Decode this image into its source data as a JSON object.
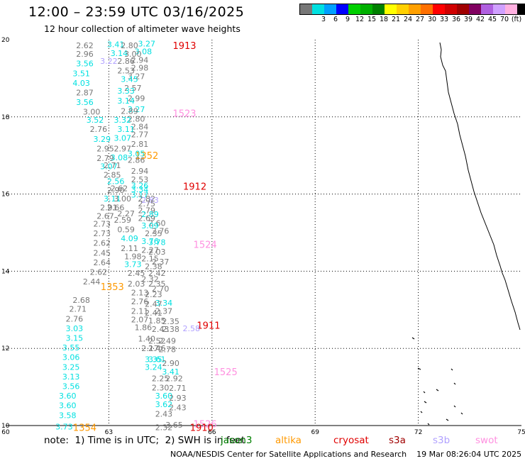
{
  "header": {
    "title": "12:00 – 23:59 UTC 03/16/2025",
    "subtitle": "12 hour collection of altimeter wave heights"
  },
  "legend": {
    "colors": [
      "#777777",
      "#00e0e0",
      "#00a0ff",
      "#0000ff",
      "#00d000",
      "#00b000",
      "#008000",
      "#ffff00",
      "#ffd000",
      "#ffa000",
      "#ff7000",
      "#ff0000",
      "#d00000",
      "#a00000",
      "#800060",
      "#b060e0",
      "#d0a0ff",
      "#ffb0e0",
      "#000000"
    ],
    "labels": [
      {
        "value": "3",
        "index": 1
      },
      {
        "value": "6",
        "index": 2
      },
      {
        "value": "9",
        "index": 3
      },
      {
        "value": "12",
        "index": 4
      },
      {
        "value": "15",
        "index": 5
      },
      {
        "value": "18",
        "index": 6
      },
      {
        "value": "21",
        "index": 7
      },
      {
        "value": "24",
        "index": 8
      },
      {
        "value": "27",
        "index": 9
      },
      {
        "value": "30",
        "index": 10
      },
      {
        "value": "33",
        "index": 11
      },
      {
        "value": "36",
        "index": 12
      },
      {
        "value": "39",
        "index": 13
      },
      {
        "value": "42",
        "index": 14
      },
      {
        "value": "45",
        "index": 15
      },
      {
        "value": "70",
        "index": 16
      },
      {
        "value": "(ft)",
        "index": 17
      }
    ]
  },
  "axes": {
    "x_ticks": [
      "60",
      "63",
      "66",
      "69",
      "72",
      "75"
    ],
    "y_ticks": [
      "20",
      "18",
      "16",
      "14",
      "12",
      "10"
    ],
    "lon_range": [
      60,
      75
    ],
    "lat_range": [
      10,
      20
    ]
  },
  "footer": {
    "note": "note:  1) Time is in UTC;  2) SWH is in feet",
    "credit": "NOAA/NESDIS Center for Satellite Applications and Research    19 Mar 08:26:04 UTC 2025",
    "missions": [
      {
        "name": "jason3",
        "color": "#008000"
      },
      {
        "name": "altika",
        "color": "#ff9900"
      },
      {
        "name": "cryosat",
        "color": "#e00000"
      },
      {
        "name": "s3a",
        "color": "#a00000"
      },
      {
        "name": "s3b",
        "color": "#b0a0ff"
      },
      {
        "name": "swot",
        "color": "#ff90e0"
      }
    ]
  },
  "colors": {
    "gray": "#777777",
    "cyan": "#00e0e0",
    "orange": "#ff9900",
    "red": "#e00000",
    "pink": "#ff90e0",
    "lavender": "#b0a0ff"
  },
  "pass_labels": [
    {
      "text": "1913",
      "lon": 65.2,
      "lat": 19.85,
      "color": "red"
    },
    {
      "text": "1523",
      "lon": 65.2,
      "lat": 18.1,
      "color": "pink"
    },
    {
      "text": "1352",
      "lon": 64.1,
      "lat": 17.0,
      "color": "orange"
    },
    {
      "text": "1912",
      "lon": 65.5,
      "lat": 16.2,
      "color": "red"
    },
    {
      "text": "1524",
      "lon": 65.8,
      "lat": 14.7,
      "color": "pink"
    },
    {
      "text": "1353",
      "lon": 63.1,
      "lat": 13.6,
      "color": "orange"
    },
    {
      "text": "1911",
      "lon": 65.9,
      "lat": 12.6,
      "color": "red"
    },
    {
      "text": "1525",
      "lon": 66.4,
      "lat": 11.4,
      "color": "pink"
    },
    {
      "text": "1354",
      "lon": 62.3,
      "lat": 9.95,
      "color": "orange"
    },
    {
      "text": "1526",
      "lon": 65.8,
      "lat": 10.05,
      "color": "pink"
    },
    {
      "text": "1910",
      "lon": 65.7,
      "lat": 9.95,
      "color": "red"
    }
  ],
  "observations": [
    {
      "v": "2.62",
      "lon": 62.3,
      "lat": 19.85,
      "c": "gray"
    },
    {
      "v": "2.96",
      "lon": 62.3,
      "lat": 19.63,
      "c": "gray"
    },
    {
      "v": "3.56",
      "lon": 62.3,
      "lat": 19.38,
      "c": "cyan"
    },
    {
      "v": "3.51",
      "lon": 62.2,
      "lat": 19.13,
      "c": "cyan"
    },
    {
      "v": "4.03",
      "lon": 62.2,
      "lat": 18.88,
      "c": "cyan"
    },
    {
      "v": "2.87",
      "lon": 62.3,
      "lat": 18.63,
      "c": "gray"
    },
    {
      "v": "3.56",
      "lon": 62.3,
      "lat": 18.38,
      "c": "cyan"
    },
    {
      "v": "3.00",
      "lon": 62.5,
      "lat": 18.13,
      "c": "gray"
    },
    {
      "v": "3.52",
      "lon": 62.6,
      "lat": 17.92,
      "c": "cyan"
    },
    {
      "v": "2.76",
      "lon": 62.7,
      "lat": 17.68,
      "c": "gray"
    },
    {
      "v": "3.29",
      "lon": 62.8,
      "lat": 17.43,
      "c": "cyan"
    },
    {
      "v": "2.95",
      "lon": 62.9,
      "lat": 17.18,
      "c": "gray"
    },
    {
      "v": "2.79",
      "lon": 62.9,
      "lat": 16.93,
      "c": "gray"
    },
    {
      "v": "3.07",
      "lon": 63.0,
      "lat": 16.72,
      "c": "cyan"
    },
    {
      "v": "2.85",
      "lon": 63.1,
      "lat": 16.5,
      "c": "gray"
    },
    {
      "v": "2.56",
      "lon": 63.2,
      "lat": 16.33,
      "c": "cyan"
    },
    {
      "v": "2.90",
      "lon": 63.2,
      "lat": 16.1,
      "c": "gray"
    },
    {
      "v": "3.11",
      "lon": 63.1,
      "lat": 15.88,
      "c": "cyan"
    },
    {
      "v": "2.91",
      "lon": 63.0,
      "lat": 15.65,
      "c": "gray"
    },
    {
      "v": "2.67",
      "lon": 62.9,
      "lat": 15.43,
      "c": "gray"
    },
    {
      "v": "2.73",
      "lon": 62.8,
      "lat": 15.23,
      "c": "gray"
    },
    {
      "v": "2.73",
      "lon": 62.8,
      "lat": 14.98,
      "c": "gray"
    },
    {
      "v": "2.62",
      "lon": 62.8,
      "lat": 14.73,
      "c": "gray"
    },
    {
      "v": "2.45",
      "lon": 62.8,
      "lat": 14.48,
      "c": "gray"
    },
    {
      "v": "2.64",
      "lon": 62.8,
      "lat": 14.23,
      "c": "gray"
    },
    {
      "v": "2.62",
      "lon": 62.7,
      "lat": 13.98,
      "c": "gray"
    },
    {
      "v": "2.44",
      "lon": 62.5,
      "lat": 13.73,
      "c": "gray"
    },
    {
      "v": "2.68",
      "lon": 62.2,
      "lat": 13.25,
      "c": "gray"
    },
    {
      "v": "2.71",
      "lon": 62.1,
      "lat": 13.02,
      "c": "gray"
    },
    {
      "v": "2.76",
      "lon": 62.0,
      "lat": 12.77,
      "c": "gray"
    },
    {
      "v": "3.03",
      "lon": 62.0,
      "lat": 12.52,
      "c": "cyan"
    },
    {
      "v": "3.15",
      "lon": 62.0,
      "lat": 12.27,
      "c": "cyan"
    },
    {
      "v": "3.55",
      "lon": 61.9,
      "lat": 12.02,
      "c": "cyan"
    },
    {
      "v": "3.06",
      "lon": 61.9,
      "lat": 11.77,
      "c": "cyan"
    },
    {
      "v": "3.25",
      "lon": 61.9,
      "lat": 11.52,
      "c": "cyan"
    },
    {
      "v": "3.13",
      "lon": 61.9,
      "lat": 11.27,
      "c": "cyan"
    },
    {
      "v": "3.56",
      "lon": 61.9,
      "lat": 11.02,
      "c": "cyan"
    },
    {
      "v": "3.60",
      "lon": 61.8,
      "lat": 10.77,
      "c": "cyan"
    },
    {
      "v": "3.60",
      "lon": 61.8,
      "lat": 10.52,
      "c": "cyan"
    },
    {
      "v": "3.58",
      "lon": 61.8,
      "lat": 10.27,
      "c": "cyan"
    },
    {
      "v": "3.73",
      "lon": 61.7,
      "lat": 9.97,
      "c": "cyan"
    },
    {
      "v": "3.41",
      "lon": 63.2,
      "lat": 19.88,
      "c": "cyan"
    },
    {
      "v": "2.80",
      "lon": 63.6,
      "lat": 19.85,
      "c": "gray"
    },
    {
      "v": "3.27",
      "lon": 64.1,
      "lat": 19.9,
      "c": "cyan"
    },
    {
      "v": "3.08",
      "lon": 64.0,
      "lat": 19.7,
      "c": "cyan"
    },
    {
      "v": "3.14",
      "lon": 63.3,
      "lat": 19.65,
      "c": "cyan"
    },
    {
      "v": "3.00",
      "lon": 63.7,
      "lat": 19.63,
      "c": "gray"
    },
    {
      "v": "2.94",
      "lon": 63.9,
      "lat": 19.48,
      "c": "gray"
    },
    {
      "v": "3.22",
      "lon": 63.0,
      "lat": 19.45,
      "c": "lavender"
    },
    {
      "v": "2.86",
      "lon": 63.5,
      "lat": 19.45,
      "c": "gray"
    },
    {
      "v": "2.98",
      "lon": 63.9,
      "lat": 19.27,
      "c": "gray"
    },
    {
      "v": "2.53",
      "lon": 63.5,
      "lat": 19.2,
      "c": "gray"
    },
    {
      "v": "3.27",
      "lon": 63.8,
      "lat": 19.05,
      "c": "gray"
    },
    {
      "v": "3.45",
      "lon": 63.6,
      "lat": 18.98,
      "c": "cyan"
    },
    {
      "v": "2.57",
      "lon": 63.7,
      "lat": 18.75,
      "c": "gray"
    },
    {
      "v": "3.33",
      "lon": 63.5,
      "lat": 18.68,
      "c": "cyan"
    },
    {
      "v": "2.99",
      "lon": 63.8,
      "lat": 18.48,
      "c": "gray"
    },
    {
      "v": "3.14",
      "lon": 63.5,
      "lat": 18.42,
      "c": "cyan"
    },
    {
      "v": "3.27",
      "lon": 63.8,
      "lat": 18.2,
      "c": "cyan"
    },
    {
      "v": "2.89",
      "lon": 63.6,
      "lat": 18.15,
      "c": "gray"
    },
    {
      "v": "2.80",
      "lon": 63.8,
      "lat": 17.95,
      "c": "gray"
    },
    {
      "v": "3.32",
      "lon": 63.4,
      "lat": 17.92,
      "c": "cyan"
    },
    {
      "v": "2.84",
      "lon": 63.9,
      "lat": 17.75,
      "c": "gray"
    },
    {
      "v": "3.11",
      "lon": 63.5,
      "lat": 17.68,
      "c": "cyan"
    },
    {
      "v": "2.77",
      "lon": 63.9,
      "lat": 17.55,
      "c": "gray"
    },
    {
      "v": "3.07",
      "lon": 63.4,
      "lat": 17.45,
      "c": "cyan"
    },
    {
      "v": "2.81",
      "lon": 63.9,
      "lat": 17.3,
      "c": "gray"
    },
    {
      "v": "2.97",
      "lon": 63.4,
      "lat": 17.18,
      "c": "gray"
    },
    {
      "v": "3.05",
      "lon": 63.8,
      "lat": 17.05,
      "c": "cyan"
    },
    {
      "v": "3.08",
      "lon": 63.3,
      "lat": 16.95,
      "c": "cyan"
    },
    {
      "v": "2.86",
      "lon": 63.8,
      "lat": 16.88,
      "c": "gray"
    },
    {
      "v": "2.71",
      "lon": 63.1,
      "lat": 16.75,
      "c": "gray"
    },
    {
      "v": "2.94",
      "lon": 63.9,
      "lat": 16.6,
      "c": "gray"
    },
    {
      "v": "2.53",
      "lon": 63.9,
      "lat": 16.38,
      "c": "gray"
    },
    {
      "v": "3.26",
      "lon": 63.9,
      "lat": 16.22,
      "c": "cyan"
    },
    {
      "v": "3.34",
      "lon": 63.9,
      "lat": 16.12,
      "c": "cyan"
    },
    {
      "v": "2.62",
      "lon": 63.3,
      "lat": 16.15,
      "c": "gray"
    },
    {
      "v": "3.17",
      "lon": 63.9,
      "lat": 15.98,
      "c": "cyan"
    },
    {
      "v": "3.00",
      "lon": 63.4,
      "lat": 15.88,
      "c": "gray"
    },
    {
      "v": "2.82",
      "lon": 64.1,
      "lat": 15.88,
      "c": "gray"
    },
    {
      "v": "2.83",
      "lon": 64.2,
      "lat": 15.85,
      "c": "lavender"
    },
    {
      "v": "2.66",
      "lon": 63.2,
      "lat": 15.65,
      "c": "gray"
    },
    {
      "v": "2.75",
      "lon": 64.1,
      "lat": 15.75,
      "c": "gray"
    },
    {
      "v": "2.79",
      "lon": 64.1,
      "lat": 15.58,
      "c": "gray"
    },
    {
      "v": "2.27",
      "lon": 63.5,
      "lat": 15.5,
      "c": "gray"
    },
    {
      "v": "2.89",
      "lon": 64.2,
      "lat": 15.48,
      "c": "cyan"
    },
    {
      "v": "2.59",
      "lon": 63.4,
      "lat": 15.33,
      "c": "gray"
    },
    {
      "v": "2.69",
      "lon": 64.1,
      "lat": 15.38,
      "c": "gray"
    },
    {
      "v": "2.60",
      "lon": 64.4,
      "lat": 15.25,
      "c": "gray"
    },
    {
      "v": "3.09",
      "lon": 64.2,
      "lat": 15.18,
      "c": "cyan"
    },
    {
      "v": "0.59",
      "lon": 63.5,
      "lat": 15.08,
      "c": "gray"
    },
    {
      "v": "2.76",
      "lon": 64.5,
      "lat": 15.05,
      "c": "gray"
    },
    {
      "v": "2.35",
      "lon": 64.3,
      "lat": 14.98,
      "c": "gray"
    },
    {
      "v": "4.09",
      "lon": 63.6,
      "lat": 14.85,
      "c": "cyan"
    },
    {
      "v": "3.76",
      "lon": 64.2,
      "lat": 14.78,
      "c": "cyan"
    },
    {
      "v": "3.78",
      "lon": 64.4,
      "lat": 14.75,
      "c": "cyan"
    },
    {
      "v": "2.11",
      "lon": 63.6,
      "lat": 14.6,
      "c": "gray"
    },
    {
      "v": "2.27",
      "lon": 64.2,
      "lat": 14.55,
      "c": "gray"
    },
    {
      "v": "2.03",
      "lon": 64.4,
      "lat": 14.5,
      "c": "gray"
    },
    {
      "v": "1.98",
      "lon": 63.7,
      "lat": 14.38,
      "c": "gray"
    },
    {
      "v": "2.15",
      "lon": 64.2,
      "lat": 14.33,
      "c": "gray"
    },
    {
      "v": "2.37",
      "lon": 64.5,
      "lat": 14.25,
      "c": "gray"
    },
    {
      "v": "3.73",
      "lon": 63.7,
      "lat": 14.18,
      "c": "cyan"
    },
    {
      "v": "2.38",
      "lon": 64.3,
      "lat": 14.13,
      "c": "gray"
    },
    {
      "v": "2.45",
      "lon": 63.8,
      "lat": 13.95,
      "c": "gray"
    },
    {
      "v": "2.42",
      "lon": 64.4,
      "lat": 13.95,
      "c": "gray"
    },
    {
      "v": "2.32",
      "lon": 64.2,
      "lat": 13.8,
      "c": "gray"
    },
    {
      "v": "2.03",
      "lon": 63.8,
      "lat": 13.68,
      "c": "gray"
    },
    {
      "v": "2.35",
      "lon": 64.4,
      "lat": 13.68,
      "c": "gray"
    },
    {
      "v": "2.70",
      "lon": 64.5,
      "lat": 13.55,
      "c": "gray"
    },
    {
      "v": "2.13",
      "lon": 63.9,
      "lat": 13.45,
      "c": "gray"
    },
    {
      "v": "2.23",
      "lon": 64.3,
      "lat": 13.4,
      "c": "gray"
    },
    {
      "v": "2.76",
      "lon": 63.9,
      "lat": 13.22,
      "c": "gray"
    },
    {
      "v": "3.34",
      "lon": 64.6,
      "lat": 13.18,
      "c": "cyan"
    },
    {
      "v": "2.47",
      "lon": 64.3,
      "lat": 13.15,
      "c": "gray"
    },
    {
      "v": "2.11",
      "lon": 63.9,
      "lat": 12.97,
      "c": "gray"
    },
    {
      "v": "2.37",
      "lon": 64.6,
      "lat": 12.97,
      "c": "gray"
    },
    {
      "v": "2.41",
      "lon": 64.3,
      "lat": 12.92,
      "c": "gray"
    },
    {
      "v": "2.07",
      "lon": 63.9,
      "lat": 12.75,
      "c": "gray"
    },
    {
      "v": "1.85",
      "lon": 64.4,
      "lat": 12.72,
      "c": "gray"
    },
    {
      "v": "2.35",
      "lon": 64.8,
      "lat": 12.7,
      "c": "gray"
    },
    {
      "v": "1.86",
      "lon": 64.0,
      "lat": 12.55,
      "c": "gray"
    },
    {
      "v": "2.43",
      "lon": 64.5,
      "lat": 12.5,
      "c": "gray"
    },
    {
      "v": "2.58",
      "lon": 65.4,
      "lat": 12.52,
      "c": "lavender"
    },
    {
      "v": "2.38",
      "lon": 64.8,
      "lat": 12.5,
      "c": "gray"
    },
    {
      "v": "1.40",
      "lon": 64.1,
      "lat": 12.25,
      "c": "gray"
    },
    {
      "v": "2.52",
      "lon": 64.4,
      "lat": 12.2,
      "c": "gray"
    },
    {
      "v": "2.49",
      "lon": 64.7,
      "lat": 12.2,
      "c": "gray"
    },
    {
      "v": "2.17",
      "lon": 64.2,
      "lat": 12.0,
      "c": "gray"
    },
    {
      "v": "2.46",
      "lon": 64.4,
      "lat": 12.0,
      "c": "gray"
    },
    {
      "v": "2.78",
      "lon": 64.7,
      "lat": 11.98,
      "c": "gray"
    },
    {
      "v": "3.35",
      "lon": 64.3,
      "lat": 11.72,
      "c": "cyan"
    },
    {
      "v": "3.61",
      "lon": 64.4,
      "lat": 11.72,
      "c": "cyan"
    },
    {
      "v": "2.90",
      "lon": 64.8,
      "lat": 11.62,
      "c": "gray"
    },
    {
      "v": "3.24",
      "lon": 64.3,
      "lat": 11.52,
      "c": "cyan"
    },
    {
      "v": "3.41",
      "lon": 64.8,
      "lat": 11.4,
      "c": "cyan"
    },
    {
      "v": "2.92",
      "lon": 64.9,
      "lat": 11.22,
      "c": "gray"
    },
    {
      "v": "2.25",
      "lon": 64.5,
      "lat": 11.22,
      "c": "gray"
    },
    {
      "v": "2.30",
      "lon": 64.5,
      "lat": 10.98,
      "c": "gray"
    },
    {
      "v": "2.71",
      "lon": 65.0,
      "lat": 10.97,
      "c": "gray"
    },
    {
      "v": "3.60",
      "lon": 64.6,
      "lat": 10.77,
      "c": "cyan"
    },
    {
      "v": "2.93",
      "lon": 65.0,
      "lat": 10.72,
      "c": "gray"
    },
    {
      "v": "3.62",
      "lon": 64.6,
      "lat": 10.55,
      "c": "cyan"
    },
    {
      "v": "2.43",
      "lon": 65.0,
      "lat": 10.47,
      "c": "gray"
    },
    {
      "v": "2.43",
      "lon": 64.6,
      "lat": 10.3,
      "c": "gray"
    },
    {
      "v": "3.65",
      "lon": 64.9,
      "lat": 10.02,
      "c": "gray"
    },
    {
      "v": "2.32",
      "lon": 64.6,
      "lat": 9.95,
      "c": "gray"
    }
  ]
}
